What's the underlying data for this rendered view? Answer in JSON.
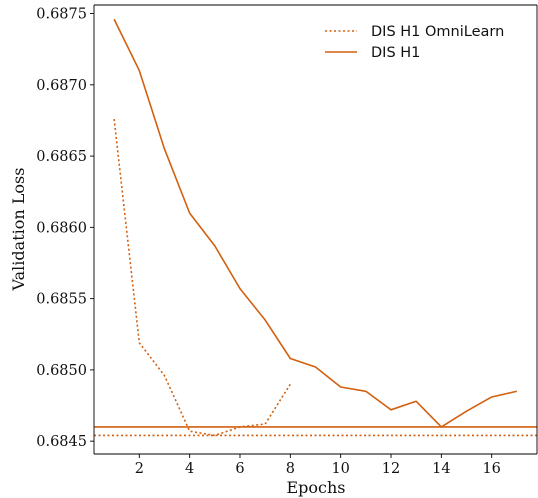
{
  "chart_data": {
    "type": "line",
    "title": "",
    "xlabel": "Epochs",
    "ylabel": "Validation Loss",
    "xlim": [
      0.2,
      17.8
    ],
    "ylim": [
      0.68441,
      0.68756
    ],
    "x_ticks": [
      2,
      4,
      6,
      8,
      10,
      12,
      14,
      16
    ],
    "y_ticks": [
      0.6845,
      0.685,
      0.6855,
      0.686,
      0.6865,
      0.687,
      0.6875
    ],
    "y_tick_labels": [
      "0.6845",
      "0.6850",
      "0.6855",
      "0.6860",
      "0.6865",
      "0.6870",
      "0.6875"
    ],
    "grid": false,
    "legend_position": "top-right",
    "color": "#d2600f",
    "series": [
      {
        "name": "DIS H1 OmniLearn",
        "line_style": "dotted",
        "x": [
          1,
          2,
          3,
          4,
          5,
          6,
          7,
          8
        ],
        "y": [
          0.68676,
          0.68519,
          0.68496,
          0.68457,
          0.68454,
          0.6846,
          0.68462,
          0.6849
        ],
        "reference_line": 0.68454
      },
      {
        "name": "DIS H1",
        "line_style": "solid",
        "x": [
          1,
          2,
          3,
          4,
          5,
          6,
          7,
          8,
          9,
          10,
          11,
          12,
          13,
          14,
          15,
          16,
          17
        ],
        "y": [
          0.68746,
          0.6871,
          0.68655,
          0.6861,
          0.68587,
          0.68557,
          0.68535,
          0.68508,
          0.68502,
          0.68488,
          0.68485,
          0.68472,
          0.68478,
          0.6846,
          0.68471,
          0.68481,
          0.68485
        ],
        "reference_line": 0.6846
      }
    ]
  }
}
